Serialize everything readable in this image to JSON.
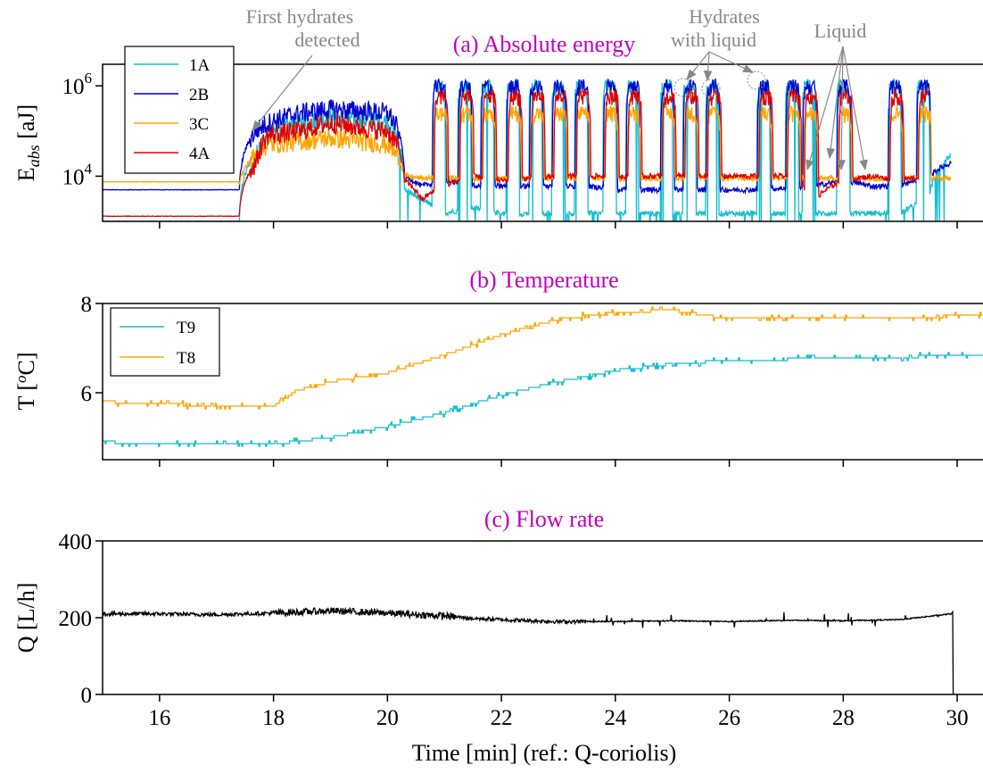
{
  "colors": {
    "title": "#c000c0",
    "annotation": "#888888",
    "axis": "#000000"
  },
  "xaxis": {
    "label": "Time [min] (ref.: Q-coriolis)",
    "lim": [
      15,
      30.5
    ],
    "ticks": [
      16,
      18,
      20,
      22,
      24,
      26,
      28,
      30
    ],
    "tick_labels": [
      "16",
      "18",
      "20",
      "22",
      "24",
      "26",
      "28",
      "30"
    ]
  },
  "chart_data": [
    {
      "type": "line",
      "title": "(a) Absolute energy",
      "ylabel": "E_abs [aJ]",
      "ylabel_main": "E",
      "ylabel_sub": "abs",
      "ylabel_unit": " [aJ]",
      "yscale": "log",
      "ylim": [
        1000,
        3000000
      ],
      "yticks": [
        10000,
        1000000
      ],
      "ytick_base": "10",
      "ytick_exps": [
        "4",
        "6"
      ],
      "legend": "top-left",
      "baseline": {
        "1A": 1000,
        "2B": 5000,
        "3C": 7500,
        "4A": 1300
      },
      "series": [
        {
          "name": "1A",
          "color": "#17becf",
          "x": [
            15.0,
            17.4,
            17.7,
            17.9,
            18.5,
            19.0,
            19.5,
            20.0,
            20.3,
            20.6,
            21.0,
            21.5,
            22.0,
            22.5,
            23.0,
            24.0,
            25.0,
            26.0,
            26.5,
            27.0,
            27.5,
            28.0,
            28.5,
            29.0,
            29.5,
            29.9
          ],
          "values": [
            1000,
            1000,
            30000,
            80000,
            150000,
            200000,
            180000,
            160000,
            5000,
            3000,
            1500,
            2000,
            1500,
            1500,
            1500,
            1500,
            1500,
            1500,
            1500,
            1500,
            1500,
            1500,
            1500,
            1500,
            3000,
            30000
          ]
        },
        {
          "name": "2B",
          "color": "#0000d0",
          "x": [
            15.0,
            17.4,
            17.7,
            17.9,
            18.5,
            19.0,
            19.5,
            20.0,
            20.3,
            20.6,
            21.0,
            21.5,
            22.0,
            22.5,
            23.0,
            23.5,
            24.0,
            25.0,
            25.5,
            26.0,
            26.5,
            27.0,
            27.5,
            28.0,
            28.5,
            29.0,
            29.5,
            29.9
          ],
          "values": [
            5000,
            5000,
            100000,
            150000,
            250000,
            300000,
            280000,
            250000,
            10000,
            6000,
            8000,
            6000,
            6000,
            6000,
            6000,
            6000,
            5000,
            5000,
            5000,
            5000,
            5000,
            5500,
            6000,
            8000,
            6000,
            6000,
            10000,
            20000
          ]
        },
        {
          "name": "3C",
          "color": "#ffa500",
          "x": [
            15.0,
            17.4,
            17.7,
            17.9,
            18.5,
            19.0,
            19.5,
            20.0,
            20.3,
            20.6,
            21.0,
            22.0,
            23.0,
            24.0,
            25.0,
            26.0,
            27.0,
            28.0,
            29.0,
            29.9
          ],
          "values": [
            7500,
            7500,
            30000,
            50000,
            60000,
            70000,
            60000,
            50000,
            10000,
            9000,
            9000,
            9000,
            9000,
            9000,
            9000,
            9000,
            9000,
            9000,
            9000,
            9000
          ]
        },
        {
          "name": "4A",
          "color": "#e00000",
          "x": [
            15.0,
            17.4,
            17.7,
            17.9,
            18.5,
            19.0,
            19.5,
            20.0,
            20.3,
            20.6,
            21.0,
            21.5,
            22.0,
            23.0,
            24.0,
            25.0,
            26.0,
            27.0,
            27.5,
            28.0,
            28.5,
            29.0,
            29.5
          ],
          "values": [
            1300,
            1300,
            20000,
            80000,
            100000,
            150000,
            120000,
            100000,
            8000,
            3000,
            6000,
            10000,
            8000,
            10000,
            10000,
            10000,
            10000,
            10000,
            3000,
            8000,
            10000,
            8000,
            10000
          ]
        }
      ],
      "spikes": [
        20.9,
        21.35,
        21.75,
        22.2,
        22.6,
        23.0,
        23.4,
        23.9,
        24.3,
        24.9,
        25.3,
        25.7,
        26.6,
        27.1,
        27.4,
        28.0,
        28.9,
        29.4
      ],
      "spike_peak": 1000000,
      "annotations": [
        {
          "text": [
            "First hydrates",
            "detected"
          ],
          "x": 18.5,
          "y": 1500000
        },
        {
          "text": [
            "Hydrates",
            "with liquid"
          ],
          "x": 25.9,
          "y": 1500000
        },
        {
          "text": [
            "Liquid"
          ],
          "x": 27.8,
          "y": 1500000
        }
      ]
    },
    {
      "type": "line",
      "title": "(b) Temperature",
      "ylabel": "T [oC]",
      "ylabel_pre": "T [",
      "ylabel_sup": "o",
      "ylabel_post": "C]",
      "ylim": [
        4.5,
        8
      ],
      "yticks": [
        6,
        8
      ],
      "ytick_labels": [
        "6",
        "8"
      ],
      "legend": "top-left",
      "series": [
        {
          "name": "T9",
          "color": "#17becf",
          "x": [
            15.0,
            16.0,
            17.0,
            18.0,
            19.0,
            20.0,
            21.0,
            22.0,
            23.0,
            24.0,
            25.0,
            26.0,
            27.0,
            28.0,
            29.0,
            30.5
          ],
          "values": [
            4.9,
            4.85,
            4.85,
            4.85,
            5.0,
            5.25,
            5.55,
            5.95,
            6.25,
            6.5,
            6.65,
            6.72,
            6.75,
            6.75,
            6.8,
            6.85
          ]
        },
        {
          "name": "T8",
          "color": "#ffa500",
          "x": [
            15.0,
            16.0,
            17.0,
            18.0,
            18.4,
            19.0,
            20.0,
            21.0,
            22.0,
            23.0,
            24.0,
            25.0,
            26.0,
            27.0,
            28.0,
            29.0,
            30.5
          ],
          "values": [
            5.8,
            5.75,
            5.7,
            5.7,
            6.05,
            6.25,
            6.45,
            6.85,
            7.3,
            7.65,
            7.8,
            7.85,
            7.65,
            7.65,
            7.65,
            7.7,
            7.72
          ]
        }
      ]
    },
    {
      "type": "line",
      "title": "(c) Flow rate",
      "ylabel": "Q [L/h]",
      "ylim": [
        0,
        400
      ],
      "yticks": [
        0,
        200,
        400
      ],
      "ytick_labels": [
        "0",
        "200",
        "400"
      ],
      "series": [
        {
          "name": "",
          "color": "#000000",
          "x": [
            15.0,
            16.0,
            17.0,
            18.0,
            18.5,
            19.0,
            19.5,
            20.0,
            20.5,
            21.0,
            21.5,
            22.0,
            22.5,
            23.0,
            24.0,
            25.0,
            26.0,
            27.0,
            28.0,
            29.0,
            29.9,
            29.95
          ],
          "values": [
            210,
            210,
            208,
            212,
            215,
            218,
            215,
            212,
            208,
            205,
            198,
            195,
            192,
            190,
            190,
            192,
            190,
            193,
            192,
            195,
            210,
            0
          ]
        }
      ]
    }
  ]
}
